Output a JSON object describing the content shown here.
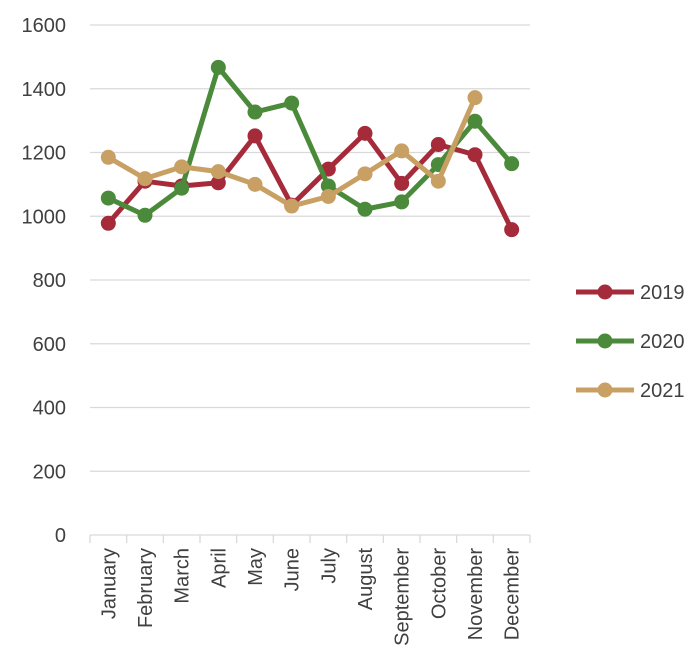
{
  "chart_data": {
    "type": "line",
    "categories": [
      "January",
      "February",
      "March",
      "April",
      "May",
      "June",
      "July",
      "August",
      "September",
      "October",
      "November",
      "December"
    ],
    "series": [
      {
        "name": "2019",
        "color": "#a52a3a",
        "values": [
          978,
          1110,
          1095,
          1105,
          1252,
          1035,
          1148,
          1260,
          1103,
          1225,
          1193,
          958
        ]
      },
      {
        "name": "2020",
        "color": "#4a8a3a",
        "values": [
          1057,
          1003,
          1088,
          1467,
          1327,
          1355,
          1095,
          1022,
          1045,
          1162,
          1298,
          1165
        ]
      },
      {
        "name": "2021",
        "color": "#c9a064",
        "values": [
          1185,
          1118,
          1155,
          1140,
          1100,
          1032,
          1062,
          1133,
          1205,
          1110,
          1372,
          null
        ]
      }
    ],
    "ylim": [
      0,
      1600
    ],
    "yticks": [
      0,
      200,
      400,
      600,
      800,
      1000,
      1200,
      1400,
      1600
    ],
    "grid": true,
    "legend_position": "right",
    "title": "",
    "xlabel": "",
    "ylabel": ""
  }
}
